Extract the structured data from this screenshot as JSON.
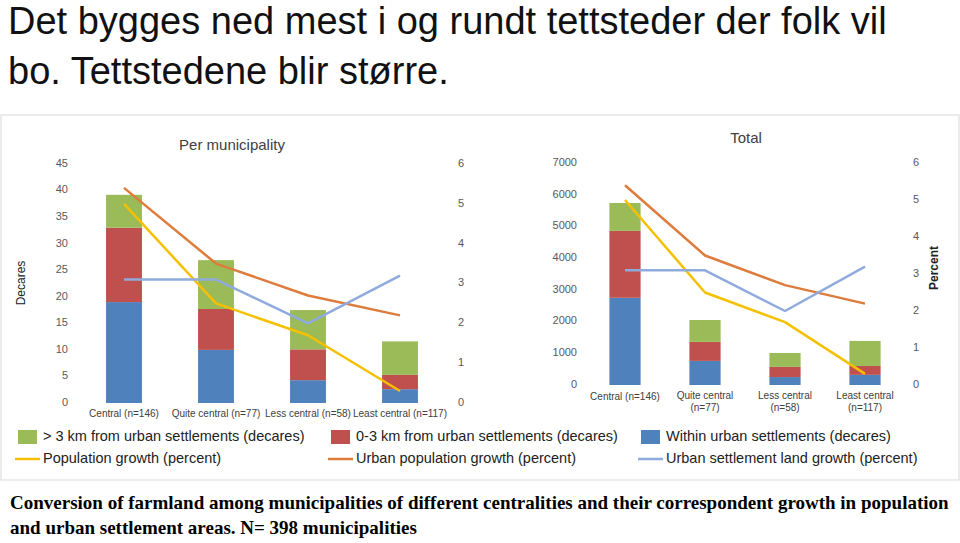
{
  "heading": "Det bygges ned mest i og rundt tettsteder der folk vil bo. Tettstedene blir større.",
  "caption": "Conversion of farmland among municipalities of different centralities and their correspondent growth in population and urban settlement areas. N= 398 municipalities",
  "chart_data": [
    {
      "type": "bar",
      "stacked": true,
      "title": "Per municipality",
      "ylabel": "Decares",
      "categories": [
        "Central (n=146)",
        "Quite central (n=77)",
        "Less central (n=58)",
        "Least central (n=117)"
      ],
      "ylim": [
        0,
        45
      ],
      "yticks": [
        0,
        5,
        10,
        15,
        20,
        25,
        30,
        35,
        40,
        45
      ],
      "y2lim": [
        0,
        6
      ],
      "y2ticks": [
        0,
        1,
        2,
        3,
        4,
        5,
        6
      ],
      "grid": false,
      "legend": "bottom",
      "series": [
        {
          "name": "> 3 km from urban settlements (decares)",
          "color": "#9bbb59",
          "values": [
            6.2,
            9.2,
            7.4,
            6.3
          ]
        },
        {
          "name": "0-3 km from urban settlements (decares)",
          "color": "#c0504d",
          "values": [
            14,
            7.7,
            5.8,
            2.7
          ]
        },
        {
          "name": "Within urban settlements (decares)",
          "color": "#4f81bd",
          "values": [
            19,
            10,
            4.3,
            2.6
          ]
        },
        {
          "name": "Population growth (percent)",
          "type": "line",
          "axis": "y2",
          "color": "#f5c000",
          "values": [
            5.0,
            2.5,
            1.7,
            0.3
          ]
        },
        {
          "name": "Urban population growth (percent)",
          "type": "line",
          "axis": "y2",
          "color": "#dd7c3c",
          "values": [
            5.4,
            3.5,
            2.7,
            2.2
          ]
        },
        {
          "name": "Urban settlement land growth (percent)",
          "type": "line",
          "axis": "y2",
          "color": "#8faadc",
          "values": [
            3.1,
            3.1,
            2.0,
            3.2
          ]
        }
      ]
    },
    {
      "type": "bar",
      "stacked": true,
      "title": "Total",
      "y2label": "Percent",
      "categories": [
        "Central (n=146)",
        "Quite central (n=77)",
        "Less central (n=58)",
        "Least central (n=117)"
      ],
      "ylim": [
        0,
        7000
      ],
      "yticks": [
        0,
        1000,
        2000,
        3000,
        4000,
        5000,
        6000,
        7000
      ],
      "y2lim": [
        0,
        6
      ],
      "y2ticks": [
        0,
        1,
        2,
        3,
        4,
        5,
        6
      ],
      "grid": false,
      "series": [
        {
          "name": "> 3 km from urban settlements (decares)",
          "color": "#9bbb59",
          "values": [
            880,
            690,
            440,
            790
          ]
        },
        {
          "name": "0-3 km from urban settlements (decares)",
          "color": "#c0504d",
          "values": [
            2110,
            600,
            320,
            280
          ]
        },
        {
          "name": "Within urban settlements (decares)",
          "color": "#4f81bd",
          "values": [
            2750,
            760,
            250,
            320
          ]
        },
        {
          "name": "Population growth (percent)",
          "type": "line",
          "axis": "y2",
          "color": "#f5c000",
          "values": [
            5.0,
            2.5,
            1.7,
            0.3
          ]
        },
        {
          "name": "Urban population growth (percent)",
          "type": "line",
          "axis": "y2",
          "color": "#dd7c3c",
          "values": [
            5.4,
            3.5,
            2.7,
            2.2
          ]
        },
        {
          "name": "Urban settlement land growth (percent)",
          "type": "line",
          "axis": "y2",
          "color": "#8faadc",
          "values": [
            3.1,
            3.1,
            2.0,
            3.2
          ]
        }
      ]
    }
  ]
}
